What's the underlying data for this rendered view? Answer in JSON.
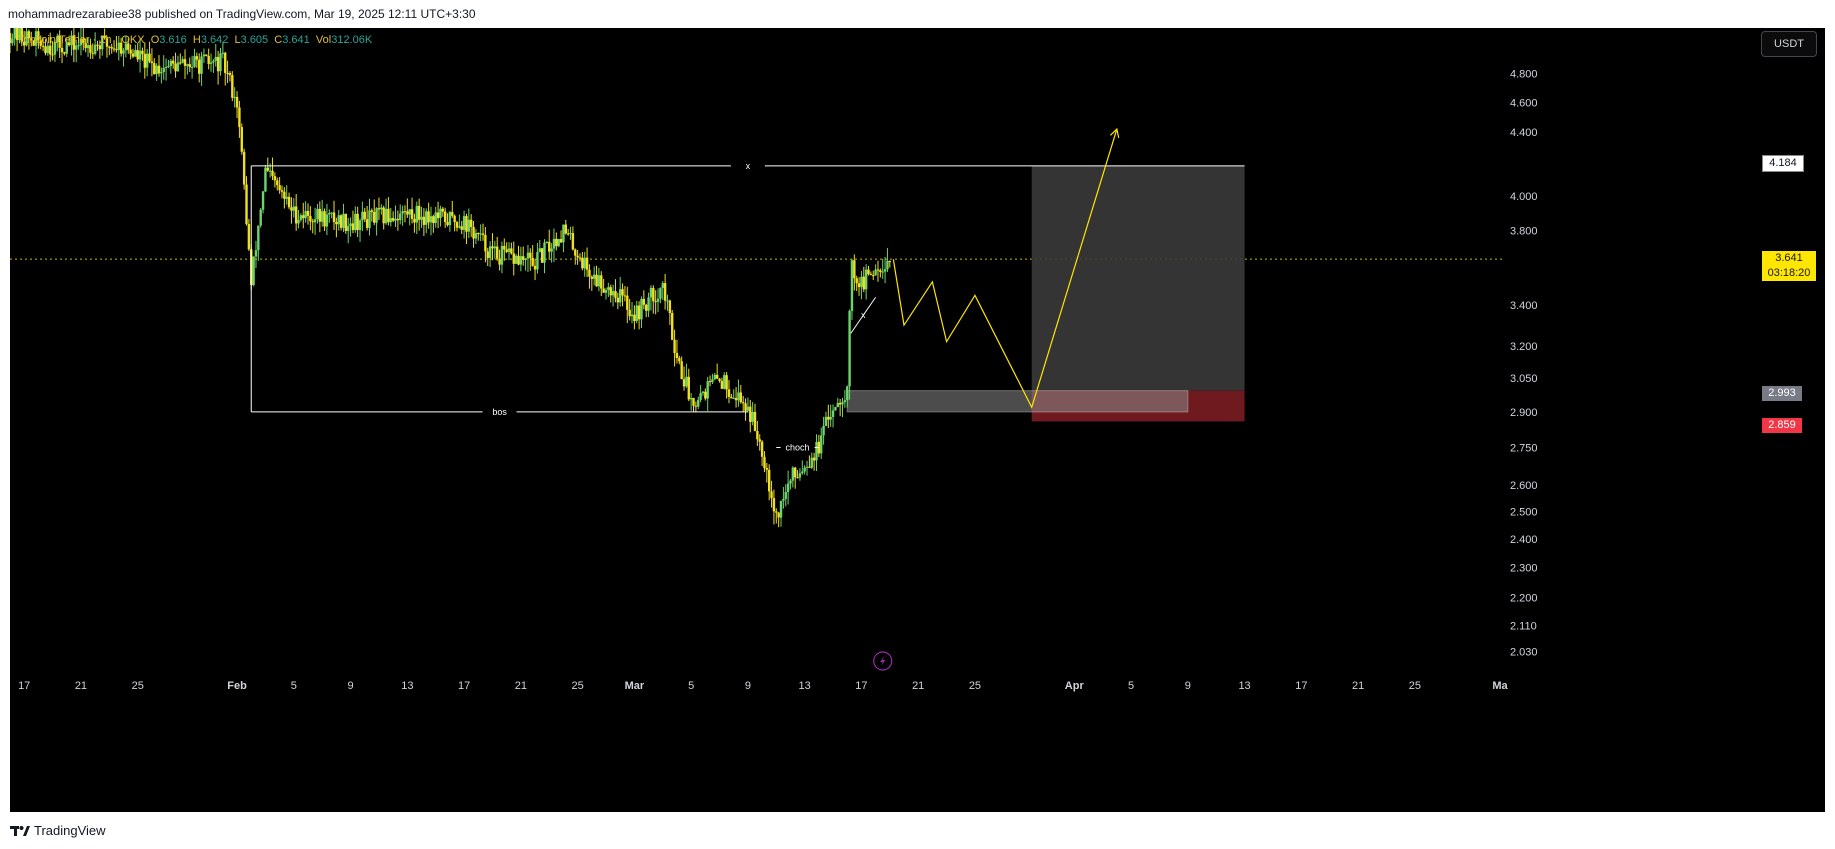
{
  "header": {
    "publish_line": "mohammadrezarabiee38 published on TradingView.com, Mar 19, 2025 12:11 UTC+3:30"
  },
  "footer": {
    "brand": "TradingView"
  },
  "toolbar": {
    "currency": "USDT"
  },
  "legend": {
    "symbol": "Toncoin/Tether · 1h · OKX",
    "open_label": "O",
    "open": "3.616",
    "high_label": "H",
    "high": "3.642",
    "low_label": "L",
    "low": "3.605",
    "close_label": "C",
    "close": "3.641",
    "vol_label": "Vol",
    "vol": "312.06K"
  },
  "price_tags": {
    "target": "4.184",
    "current": "3.641",
    "countdown": "03:18:20",
    "entry": "2.993",
    "stop": "2.859"
  },
  "annotations": {
    "top_mark": "x",
    "bos": "bos",
    "choch": "choch",
    "small_mark": "x"
  },
  "colors": {
    "background": "#000000",
    "candle": "#f0e020",
    "candle_up": "#6ed46e",
    "accent": "#ffe600",
    "target_zone": "#3a3a3a",
    "stop_zone": "#6e1a1e",
    "stop_tag": "#f23645",
    "entry_tag": "#787b86"
  },
  "chart_data": {
    "type": "candlestick",
    "symbol": "Toncoin/Tether",
    "interval": "1h",
    "exchange": "OKX",
    "y_scale": "log",
    "ylim": [
      1.98,
      5.1
    ],
    "y_ticks": [
      4.8,
      4.6,
      4.4,
      4.0,
      3.8,
      3.4,
      3.2,
      3.05,
      2.9,
      2.75,
      2.6,
      2.5,
      2.4,
      2.3,
      2.2,
      2.11,
      2.03
    ],
    "y_tick_labels": [
      "4.800",
      "4.600",
      "4.400",
      "4.000",
      "3.800",
      "3.400",
      "3.200",
      "3.050",
      "2.900",
      "2.750",
      "2.600",
      "2.500",
      "2.400",
      "2.300",
      "2.200",
      "2.110",
      "2.030"
    ],
    "x_range": [
      "2025-01-16",
      "2025-05-01"
    ],
    "x_ticks": [
      "2025-01-17",
      "2025-01-21",
      "2025-01-25",
      "2025-02-01",
      "2025-02-05",
      "2025-02-09",
      "2025-02-13",
      "2025-02-17",
      "2025-02-21",
      "2025-02-25",
      "2025-03-01",
      "2025-03-05",
      "2025-03-09",
      "2025-03-13",
      "2025-03-17",
      "2025-03-21",
      "2025-03-25",
      "2025-04-01",
      "2025-04-05",
      "2025-04-09",
      "2025-04-13",
      "2025-04-17",
      "2025-04-21",
      "2025-04-25",
      "2025-05-01"
    ],
    "x_tick_labels": [
      "17",
      "21",
      "25",
      "Feb",
      "5",
      "9",
      "13",
      "17",
      "21",
      "25",
      "Mar",
      "5",
      "9",
      "13",
      "17",
      "21",
      "25",
      "Apr",
      "5",
      "9",
      "13",
      "17",
      "21",
      "25",
      "Ma"
    ],
    "price_path": [
      [
        "2025-01-16",
        5.1
      ],
      [
        "2025-01-19",
        5.0
      ],
      [
        "2025-01-22",
        5.02
      ],
      [
        "2025-01-24",
        5.0
      ],
      [
        "2025-01-26",
        4.85
      ],
      [
        "2025-01-28",
        4.86
      ],
      [
        "2025-01-31",
        4.88
      ],
      [
        "2025-02-01",
        4.6
      ],
      [
        "2025-02-02",
        3.5
      ],
      [
        "2025-02-03",
        4.15
      ],
      [
        "2025-02-05",
        3.9
      ],
      [
        "2025-02-09",
        3.85
      ],
      [
        "2025-02-13",
        3.9
      ],
      [
        "2025-02-17",
        3.85
      ],
      [
        "2025-02-19",
        3.67
      ],
      [
        "2025-02-22",
        3.62
      ],
      [
        "2025-02-24",
        3.8
      ],
      [
        "2025-02-26",
        3.55
      ],
      [
        "2025-02-28",
        3.45
      ],
      [
        "2025-03-01",
        3.35
      ],
      [
        "2025-03-03",
        3.5
      ],
      [
        "2025-03-04",
        3.15
      ],
      [
        "2025-03-05",
        2.95
      ],
      [
        "2025-03-07",
        3.05
      ],
      [
        "2025-03-09",
        2.92
      ],
      [
        "2025-03-10",
        2.75
      ],
      [
        "2025-03-11",
        2.48
      ],
      [
        "2025-03-12",
        2.62
      ],
      [
        "2025-03-14",
        2.75
      ],
      [
        "2025-03-15",
        2.93
      ],
      [
        "2025-03-16",
        3.0
      ],
      [
        "2025-03-16T06",
        3.6
      ],
      [
        "2025-03-17",
        3.5
      ],
      [
        "2025-03-18",
        3.6
      ],
      [
        "2025-03-19",
        3.641
      ]
    ],
    "levels": [
      {
        "label": "x",
        "price": 4.184,
        "from": "2025-02-02",
        "to": "2025-04-13"
      },
      {
        "label": "bos",
        "price": 2.9,
        "from": "2025-02-02",
        "to": "2025-03-09"
      },
      {
        "label": "choch",
        "price": 2.75,
        "from": "2025-03-11",
        "to": "2025-03-14"
      }
    ],
    "projection": [
      [
        "2025-03-19T06",
        3.64
      ],
      [
        "2025-03-20",
        3.3
      ],
      [
        "2025-03-22",
        3.52
      ],
      [
        "2025-03-23",
        3.22
      ],
      [
        "2025-03-25",
        3.45
      ],
      [
        "2025-03-29",
        2.92
      ],
      [
        "2025-04-04",
        4.42
      ]
    ],
    "position": {
      "entry": 2.993,
      "target": 4.184,
      "stop": 2.859,
      "from": "2025-03-29",
      "to": "2025-04-13"
    },
    "demand_zone": {
      "top": 2.993,
      "bottom": 2.9,
      "from": "2025-03-16",
      "to": "2025-04-09"
    },
    "current_price": 3.641
  }
}
